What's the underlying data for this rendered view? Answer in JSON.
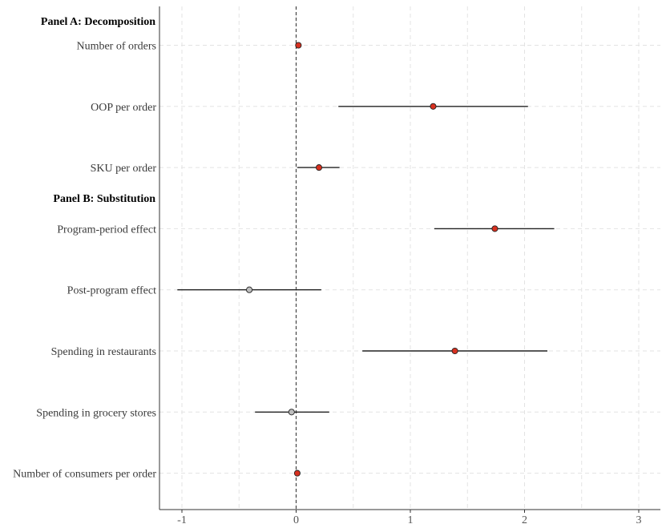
{
  "chart_data": {
    "type": "scatter",
    "style": "coefficient-plot",
    "xlim": [
      -1.2,
      3.2
    ],
    "xticks": [
      -1,
      0,
      1,
      2,
      3
    ],
    "xtick_labels": [
      "-1",
      "0",
      "1",
      "2",
      "3"
    ],
    "reference_line": 0,
    "colors": {
      "significant": "#d7301f",
      "not_significant": "#bdbdbd"
    },
    "panels": [
      {
        "key": "A",
        "title": "Panel A: Decomposition"
      },
      {
        "key": "B",
        "title": "Panel B: Substitution"
      }
    ],
    "rows": [
      {
        "panel": "A",
        "label": "Number of orders",
        "estimate": 0.02,
        "ci_low": 0.02,
        "ci_high": 0.02,
        "significant": true
      },
      {
        "panel": "A",
        "label": "OOP per order",
        "estimate": 1.2,
        "ci_low": 0.37,
        "ci_high": 2.03,
        "significant": true
      },
      {
        "panel": "A",
        "label": "SKU per order",
        "estimate": 0.2,
        "ci_low": 0.01,
        "ci_high": 0.38,
        "significant": true
      },
      {
        "panel": "B",
        "label": "Program-period effect",
        "estimate": 1.74,
        "ci_low": 1.21,
        "ci_high": 2.26,
        "significant": true
      },
      {
        "panel": "B",
        "label": "Post-program effect",
        "estimate": -0.41,
        "ci_low": -1.04,
        "ci_high": 0.22,
        "significant": false
      },
      {
        "panel": "B",
        "label": "Spending in restaurants",
        "estimate": 1.39,
        "ci_low": 0.58,
        "ci_high": 2.2,
        "significant": true
      },
      {
        "panel": "B",
        "label": "Spending in grocery stores",
        "estimate": -0.04,
        "ci_low": -0.36,
        "ci_high": 0.29,
        "significant": false
      },
      {
        "panel": "B",
        "label": "Number of consumers per order",
        "estimate": 0.01,
        "ci_low": 0.01,
        "ci_high": 0.01,
        "significant": true
      }
    ]
  }
}
